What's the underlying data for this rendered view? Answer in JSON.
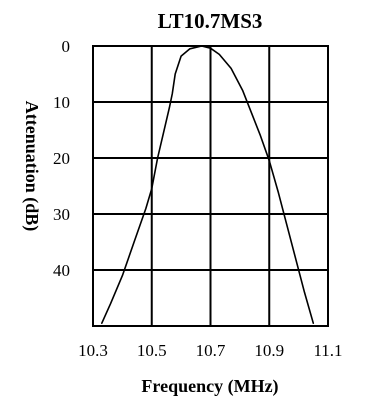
{
  "chart_data": {
    "type": "line",
    "title": "LT10.7MS3",
    "xlabel": "Frequency (MHz)",
    "ylabel": "Attenuation (dB)",
    "xlim": [
      10.3,
      11.1
    ],
    "ylim": [
      0,
      50
    ],
    "y_inverted": true,
    "grid": true,
    "x_ticks": [
      "10.3",
      "10.5",
      "10.7",
      "10.9",
      "11.1"
    ],
    "y_ticks": [
      "0",
      "10",
      "20",
      "30",
      "40"
    ],
    "series": [
      {
        "color": "#000000",
        "x": [
          10.33,
          10.36,
          10.4,
          10.44,
          10.48,
          10.5,
          10.52,
          10.54,
          10.56,
          10.57,
          10.58,
          10.6,
          10.63,
          10.67,
          10.7,
          10.73,
          10.77,
          10.81,
          10.84,
          10.87,
          10.9,
          10.93,
          10.96,
          10.99,
          11.02,
          11.05
        ],
        "y": [
          49.5,
          46,
          41,
          35,
          29,
          25.5,
          20,
          15.5,
          11,
          8.5,
          5,
          1.8,
          0.5,
          0,
          0.4,
          1.5,
          4,
          8,
          12,
          16,
          20.5,
          26,
          32,
          38,
          44,
          49.5
        ]
      }
    ]
  }
}
